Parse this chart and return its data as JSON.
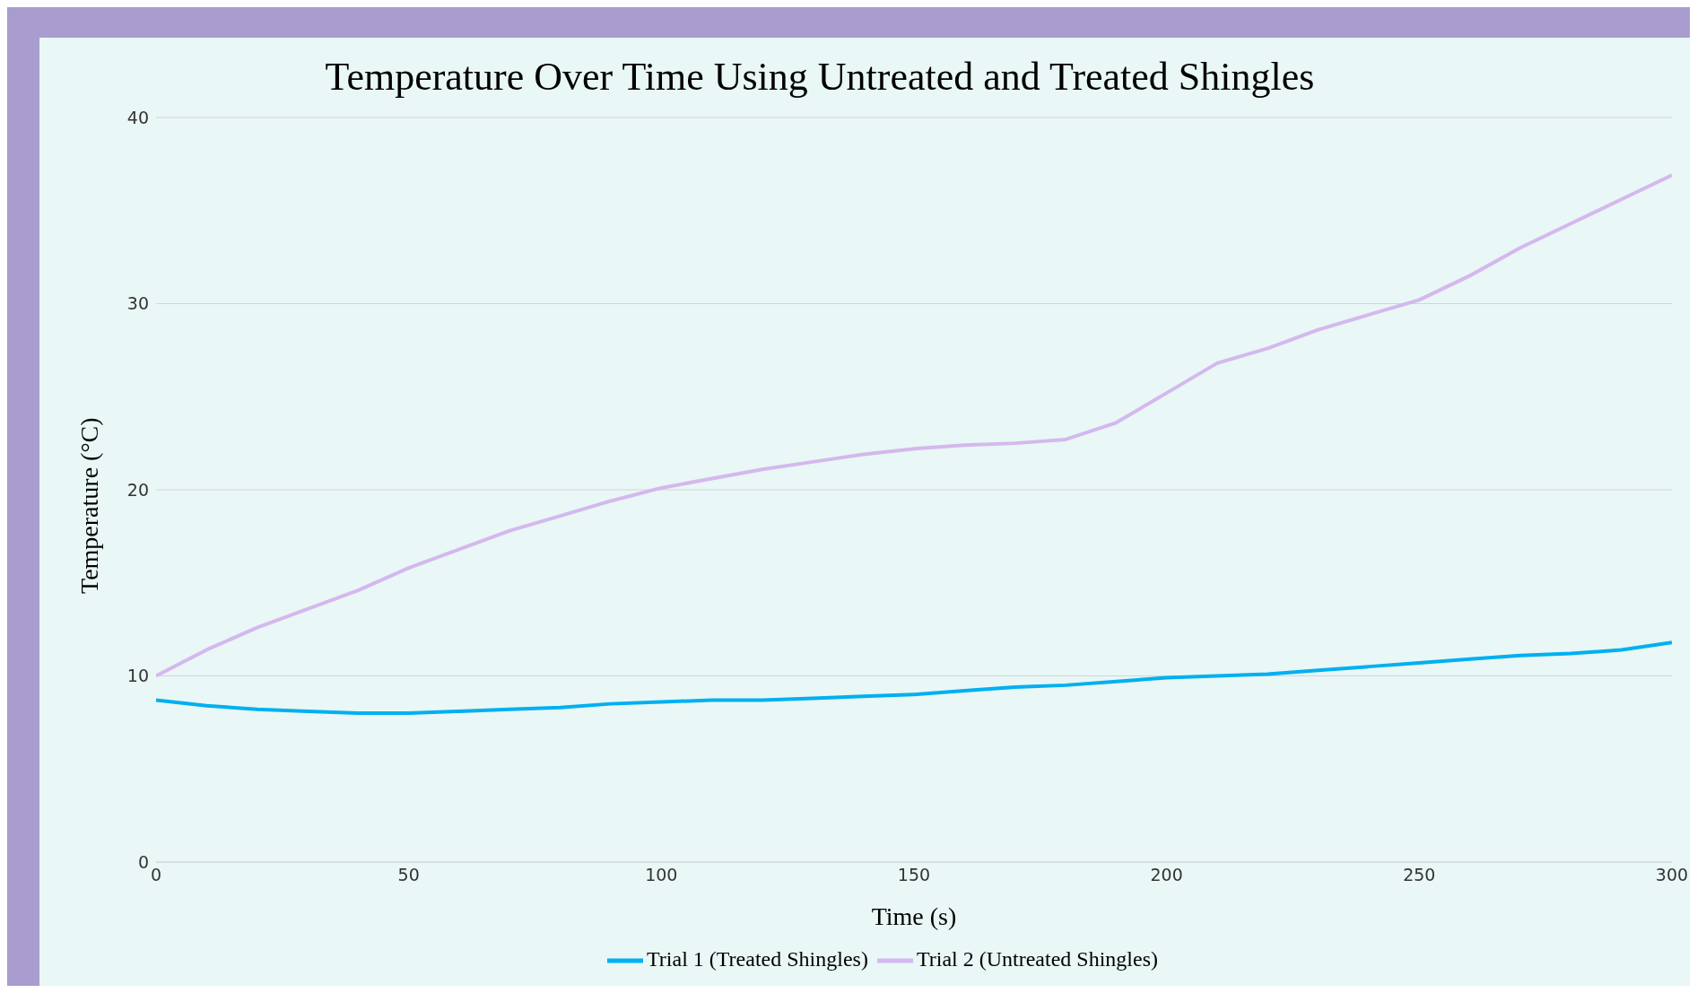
{
  "chart_data": {
    "type": "line",
    "title": "Temperature Over Time Using Untreated and Treated Shingles",
    "xlabel": "Time (s)",
    "ylabel": "Temperature (°C)",
    "x": [
      0,
      10,
      20,
      30,
      40,
      50,
      60,
      70,
      80,
      90,
      100,
      110,
      120,
      130,
      140,
      150,
      160,
      170,
      180,
      190,
      200,
      210,
      220,
      230,
      240,
      250,
      260,
      270,
      280,
      290,
      300
    ],
    "series": [
      {
        "name": "Trial 1 (Treated Shingles)",
        "color": "#00b0f0",
        "values": [
          8.7,
          8.4,
          8.2,
          8.1,
          8.0,
          8.0,
          8.1,
          8.2,
          8.3,
          8.5,
          8.6,
          8.7,
          8.7,
          8.8,
          8.9,
          9.0,
          9.2,
          9.4,
          9.5,
          9.7,
          9.9,
          10.0,
          10.1,
          10.3,
          10.5,
          10.7,
          10.9,
          11.1,
          11.2,
          11.4,
          11.8
        ]
      },
      {
        "name": "Trial 2 (Untreated Shingles)",
        "color": "#d4b8ee",
        "values": [
          10.0,
          11.4,
          12.6,
          13.6,
          14.6,
          15.8,
          16.8,
          17.8,
          18.6,
          19.4,
          20.1,
          20.6,
          21.1,
          21.5,
          21.9,
          22.2,
          22.4,
          22.5,
          22.7,
          23.6,
          25.2,
          26.8,
          27.6,
          28.6,
          29.4,
          30.2,
          31.5,
          33.0,
          34.3,
          35.6,
          36.9
        ]
      }
    ],
    "xlim": [
      0,
      300
    ],
    "xticks": [
      0,
      50,
      100,
      150,
      200,
      250,
      300
    ],
    "ylim": [
      0,
      40
    ],
    "yticks": [
      0,
      10,
      20,
      30,
      40
    ],
    "grid": "y",
    "legend": "bottom",
    "marker": "none",
    "line_style": "solid"
  }
}
